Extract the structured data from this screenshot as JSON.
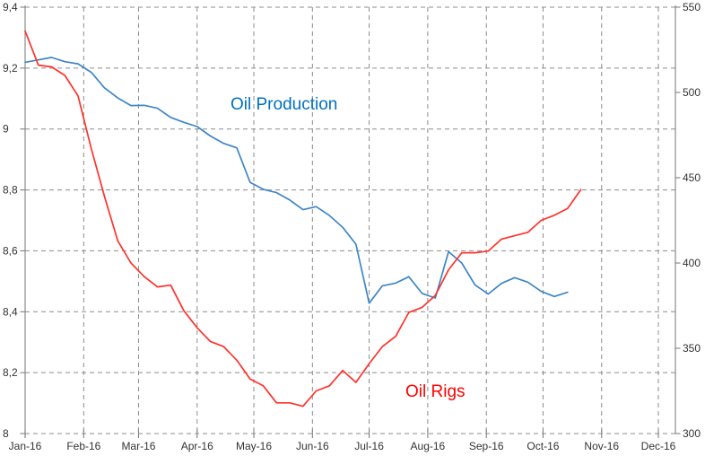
{
  "chart_data": {
    "type": "line",
    "title": "",
    "xlabel": "",
    "ylabel_left": "",
    "ylabel_right": "",
    "grid": {
      "on": true,
      "dashed": true,
      "color": "#8c8c8c"
    },
    "axis_color": "#808080",
    "text_color": "#333333",
    "legend_position": "inline-annotations",
    "x_axis": {
      "start_date": "2016-01-01",
      "months": [
        "Jan-16",
        "Feb-16",
        "Mar-16",
        "Apr-16",
        "May-16",
        "Jun-16",
        "Jul-16",
        "Aug-16",
        "Sep-16",
        "Oct-16",
        "Nov-16",
        "Dec-16"
      ]
    },
    "y_left": {
      "min": 8,
      "max": 9.4,
      "tick_values": [
        9.4,
        9.2,
        9.0,
        8.8,
        8.6,
        8.4,
        8.2,
        8.0
      ],
      "tick_labels": [
        "9,4",
        "9,2",
        "9",
        "8,8",
        "8,6",
        "8,4",
        "8,2",
        "8"
      ]
    },
    "y_right": {
      "min": 300,
      "max": 550,
      "tick_values": [
        550,
        500,
        450,
        400,
        350,
        300
      ],
      "tick_labels": [
        "550",
        "500",
        "450",
        "400",
        "350",
        "300"
      ]
    },
    "series": [
      {
        "name": "Oil Production",
        "axis": "left",
        "color": "#3e86c6",
        "label_color": "#0070c0",
        "dates": [
          "2016-01-01",
          "2016-01-08",
          "2016-01-15",
          "2016-01-22",
          "2016-01-29",
          "2016-02-05",
          "2016-02-12",
          "2016-02-19",
          "2016-02-26",
          "2016-03-04",
          "2016-03-11",
          "2016-03-18",
          "2016-03-25",
          "2016-04-01",
          "2016-04-08",
          "2016-04-15",
          "2016-04-22",
          "2016-04-29",
          "2016-05-06",
          "2016-05-13",
          "2016-05-20",
          "2016-05-27",
          "2016-06-03",
          "2016-06-10",
          "2016-06-17",
          "2016-06-24",
          "2016-07-01",
          "2016-07-08",
          "2016-07-15",
          "2016-07-22",
          "2016-07-29",
          "2016-08-05",
          "2016-08-12",
          "2016-08-19",
          "2016-08-26",
          "2016-09-02",
          "2016-09-09",
          "2016-09-16",
          "2016-09-23",
          "2016-09-30",
          "2016-10-07",
          "2016-10-14"
        ],
        "values": [
          9.219,
          9.227,
          9.235,
          9.221,
          9.214,
          9.186,
          9.135,
          9.102,
          9.077,
          9.078,
          9.068,
          9.038,
          9.022,
          9.008,
          8.977,
          8.953,
          8.938,
          8.825,
          8.802,
          8.791,
          8.767,
          8.735,
          8.745,
          8.716,
          8.677,
          8.622,
          8.428,
          8.485,
          8.494,
          8.515,
          8.46,
          8.445,
          8.597,
          8.56,
          8.488,
          8.458,
          8.493,
          8.512,
          8.497,
          8.467,
          8.45,
          8.464
        ]
      },
      {
        "name": "Oil Rigs",
        "axis": "right",
        "color": "#ff322b",
        "label_color": "#ff0000",
        "dates": [
          "2016-01-01",
          "2016-01-08",
          "2016-01-15",
          "2016-01-22",
          "2016-01-29",
          "2016-02-05",
          "2016-02-12",
          "2016-02-19",
          "2016-02-26",
          "2016-03-04",
          "2016-03-11",
          "2016-03-18",
          "2016-03-25",
          "2016-04-01",
          "2016-04-08",
          "2016-04-15",
          "2016-04-22",
          "2016-04-29",
          "2016-05-06",
          "2016-05-13",
          "2016-05-20",
          "2016-05-27",
          "2016-06-03",
          "2016-06-10",
          "2016-06-17",
          "2016-06-24",
          "2016-07-01",
          "2016-07-08",
          "2016-07-15",
          "2016-07-22",
          "2016-07-29",
          "2016-08-05",
          "2016-08-12",
          "2016-08-19",
          "2016-08-26",
          "2016-09-02",
          "2016-09-09",
          "2016-09-16",
          "2016-09-23",
          "2016-09-30",
          "2016-10-07",
          "2016-10-14",
          "2016-10-21"
        ],
        "values": [
          536,
          516,
          515,
          510,
          498,
          467,
          439,
          413,
          400,
          392,
          386,
          387,
          372,
          362,
          354,
          351,
          343,
          332,
          328,
          318,
          318,
          316,
          325,
          328,
          337,
          330,
          341,
          351,
          357,
          371,
          374,
          381,
          396,
          406,
          406,
          407,
          414,
          416,
          418,
          425,
          428,
          432,
          443
        ]
      }
    ],
    "annotations": [
      {
        "text": "Oil Production",
        "color": "#0070c0"
      },
      {
        "text": "Oil Rigs",
        "color": "#ff0000"
      }
    ]
  }
}
